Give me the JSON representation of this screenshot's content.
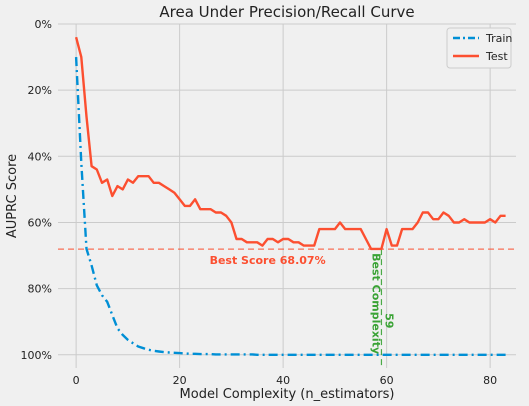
{
  "chart_data": {
    "type": "line",
    "title": "Area Under Precision/Recall Curve",
    "xlabel": "Model Complexity (n_estimators)",
    "ylabel": "AUPRC Score",
    "xlim": [
      -3.5,
      85
    ],
    "ylim": [
      0,
      1.04
    ],
    "y_inverted": true,
    "xticks": [
      0,
      20,
      40,
      60,
      80
    ],
    "yticks": [
      0,
      0.2,
      0.4,
      0.6,
      0.8,
      1.0
    ],
    "ytick_labels": [
      "0%",
      "20%",
      "40%",
      "60%",
      "80%",
      "100%"
    ],
    "grid": true,
    "legend_position": "top-right",
    "colors": {
      "train": "#008fd5",
      "test": "#fc4f30",
      "best_score": "#fc4f30",
      "best_complexity": "#3aa335"
    },
    "series": [
      {
        "name": "Train",
        "style": "dash-dot",
        "x": [
          0,
          1,
          2,
          3,
          4,
          5,
          6,
          7,
          8,
          9,
          10,
          11,
          12,
          13,
          14,
          15,
          16,
          17,
          18,
          19,
          20,
          21,
          22,
          23,
          24,
          25,
          26,
          27,
          28,
          29,
          30,
          31,
          32,
          33,
          34,
          35,
          36,
          37,
          38,
          39,
          40,
          41,
          42,
          43,
          44,
          45,
          46,
          47,
          48,
          49,
          50,
          51,
          52,
          53,
          54,
          55,
          56,
          57,
          58,
          59,
          60,
          61,
          62,
          63,
          64,
          65,
          66,
          67,
          68,
          69,
          70,
          71,
          72,
          73,
          74,
          75,
          76,
          77,
          78,
          79,
          80,
          81,
          82,
          83
        ],
        "values": [
          0.1,
          0.42,
          0.68,
          0.73,
          0.79,
          0.82,
          0.84,
          0.88,
          0.92,
          0.94,
          0.955,
          0.965,
          0.975,
          0.98,
          0.985,
          0.988,
          0.99,
          0.992,
          0.993,
          0.994,
          0.995,
          0.996,
          0.997,
          0.997,
          0.998,
          0.998,
          0.998,
          0.999,
          0.999,
          0.999,
          0.999,
          0.999,
          0.999,
          0.999,
          0.999,
          1,
          1,
          1,
          1,
          1,
          1,
          1,
          1,
          1,
          1,
          1,
          1,
          1,
          1,
          1,
          1,
          1,
          1,
          1,
          1,
          1,
          1,
          1,
          1,
          1,
          1,
          1,
          1,
          1,
          1,
          1,
          1,
          1,
          1,
          1,
          1,
          1,
          1,
          1,
          1,
          1,
          1,
          1,
          1,
          1,
          1,
          1,
          1,
          1
        ]
      },
      {
        "name": "Test",
        "style": "solid",
        "x": [
          0,
          1,
          2,
          3,
          4,
          5,
          6,
          7,
          8,
          9,
          10,
          11,
          12,
          13,
          14,
          15,
          16,
          17,
          18,
          19,
          20,
          21,
          22,
          23,
          24,
          25,
          26,
          27,
          28,
          29,
          30,
          31,
          32,
          33,
          34,
          35,
          36,
          37,
          38,
          39,
          40,
          41,
          42,
          43,
          44,
          45,
          46,
          47,
          48,
          49,
          50,
          51,
          52,
          53,
          54,
          55,
          56,
          57,
          58,
          59,
          60,
          61,
          62,
          63,
          64,
          65,
          66,
          67,
          68,
          69,
          70,
          71,
          72,
          73,
          74,
          75,
          76,
          77,
          78,
          79,
          80,
          81,
          82,
          83
        ],
        "values": [
          0.04,
          0.1,
          0.28,
          0.43,
          0.44,
          0.48,
          0.47,
          0.52,
          0.49,
          0.5,
          0.47,
          0.48,
          0.46,
          0.46,
          0.46,
          0.48,
          0.48,
          0.49,
          0.5,
          0.51,
          0.53,
          0.55,
          0.55,
          0.53,
          0.56,
          0.56,
          0.56,
          0.57,
          0.57,
          0.58,
          0.6,
          0.65,
          0.65,
          0.66,
          0.66,
          0.66,
          0.67,
          0.65,
          0.65,
          0.66,
          0.65,
          0.65,
          0.66,
          0.66,
          0.67,
          0.67,
          0.67,
          0.62,
          0.62,
          0.62,
          0.62,
          0.6,
          0.62,
          0.62,
          0.62,
          0.62,
          0.65,
          0.68,
          0.68,
          0.68,
          0.62,
          0.67,
          0.67,
          0.62,
          0.62,
          0.62,
          0.6,
          0.57,
          0.57,
          0.59,
          0.59,
          0.57,
          0.58,
          0.6,
          0.6,
          0.59,
          0.6,
          0.6,
          0.6,
          0.6,
          0.59,
          0.6,
          0.58,
          0.58
        ]
      }
    ],
    "annotations": [
      {
        "type": "hline",
        "y": 0.6807,
        "label": "Best Score 68.07%",
        "label_x": 37
      },
      {
        "type": "vline",
        "x": 59,
        "label": "Best Complexity",
        "value_label": "59"
      }
    ]
  }
}
